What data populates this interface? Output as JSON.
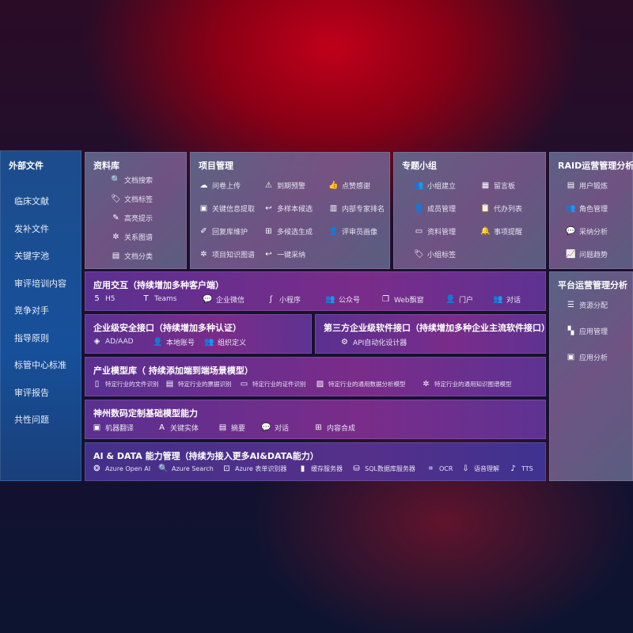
{
  "sidebar": {
    "title": "外部文件",
    "items": [
      "临床文献",
      "发补文件",
      "关键字池",
      "审评培训内容",
      "竞争对手",
      "指导原则",
      "标管中心标准",
      "审评报告",
      "共性问题"
    ]
  },
  "library": {
    "title": "资料库",
    "items": [
      {
        "icon": "doc-search-icon",
        "g": "🔍",
        "label": "文档搜索"
      },
      {
        "icon": "tag-icon",
        "g": "🏷",
        "label": "文档标签"
      },
      {
        "icon": "pen-icon",
        "g": "✎",
        "label": "高亮提示"
      },
      {
        "icon": "graph-icon",
        "g": "✲",
        "label": "关系图谱"
      },
      {
        "icon": "doc-classify-icon",
        "g": "▤",
        "label": "文档分类"
      }
    ]
  },
  "project": {
    "title": "项目管理",
    "items": [
      {
        "icon": "cloud-upload-icon",
        "g": "☁",
        "label": "问卷上传"
      },
      {
        "icon": "alarm-icon",
        "g": "⚠",
        "label": "到期预警"
      },
      {
        "icon": "thumbs-up-icon",
        "g": "👍",
        "label": "点赞感谢"
      },
      {
        "icon": "window-icon",
        "g": "▣",
        "label": "关键信息提取"
      },
      {
        "icon": "reply-icon",
        "g": "↩",
        "label": "多样本候选"
      },
      {
        "icon": "ranking-icon",
        "g": "▥",
        "label": "内部专家排名"
      },
      {
        "icon": "edit-icon",
        "g": "✐",
        "label": "回复库维护"
      },
      {
        "icon": "puzzle-icon",
        "g": "⊞",
        "label": "多候选生成"
      },
      {
        "icon": "user-icon",
        "g": "👤",
        "label": "评审员画像"
      },
      {
        "icon": "graph-icon",
        "g": "✲",
        "label": "项目知识图谱"
      },
      {
        "icon": "reply-icon",
        "g": "↩",
        "label": "一键采纳"
      }
    ]
  },
  "group": {
    "title": "专题小组",
    "items": [
      {
        "icon": "users-icon",
        "g": "👥",
        "label": "小组建立"
      },
      {
        "icon": "bbs-icon",
        "g": "▦",
        "label": "留言板"
      },
      {
        "icon": "member-icon",
        "g": "👤",
        "label": "成员管理"
      },
      {
        "icon": "clipboard-icon",
        "g": "📋",
        "label": "代办列表"
      },
      {
        "icon": "folder-icon",
        "g": "▭",
        "label": "资料管理"
      },
      {
        "icon": "bell-icon",
        "g": "🔔",
        "label": "事项提醒"
      },
      {
        "icon": "tag-icon",
        "g": "🏷",
        "label": "小组标签"
      }
    ]
  },
  "raid": {
    "title": "RAID运营管理分析",
    "items": [
      {
        "icon": "id-card-icon",
        "g": "▤",
        "label": "用户锻炼"
      },
      {
        "icon": "users-icon",
        "g": "👥",
        "label": "角色管理"
      },
      {
        "icon": "qa-icon",
        "g": "💬",
        "label": "采纳分析"
      },
      {
        "icon": "trend-icon",
        "g": "📈",
        "label": "问题趋势"
      }
    ]
  },
  "app": {
    "title": "应用交互（持续增加多种客户端）",
    "items": [
      {
        "icon": "html5-icon",
        "g": "5",
        "label": "H5"
      },
      {
        "icon": "teams-icon",
        "g": "T",
        "label": "Teams"
      },
      {
        "icon": "wecom-icon",
        "g": "💬",
        "label": "企业微信"
      },
      {
        "icon": "miniprogram-icon",
        "g": "ʃ",
        "label": "小程序"
      },
      {
        "icon": "public-account-icon",
        "g": "👥",
        "label": "公众号"
      },
      {
        "icon": "web-window-icon",
        "g": "❐",
        "label": "Web飘窗"
      },
      {
        "icon": "portal-icon",
        "g": "👤",
        "label": "门户"
      },
      {
        "icon": "chat-icon",
        "g": "👥",
        "label": "对话"
      }
    ]
  },
  "security": {
    "title": "企业级安全接口（持续增加多种认证）",
    "items": [
      {
        "icon": "aad-icon",
        "g": "◈",
        "label": "AD/AAD"
      },
      {
        "icon": "local-account-icon",
        "g": "👤",
        "label": "本地账号"
      },
      {
        "icon": "org-icon",
        "g": "👥",
        "label": "组织定义"
      }
    ]
  },
  "third": {
    "title": "第三方企业级软件接口（持续增加多种企业主流软件接口）",
    "items": [
      {
        "icon": "api-gear-icon",
        "g": "⚙",
        "label": "API自动化设计器"
      }
    ]
  },
  "industry": {
    "title": "产业模型库（ 持续添加端到端场景模型）",
    "items": [
      {
        "icon": "file-icon",
        "g": "▯",
        "label": "特定行业的文件识别"
      },
      {
        "icon": "receipt-icon",
        "g": "▤",
        "label": "特定行业的票据识别"
      },
      {
        "icon": "id-card-icon",
        "g": "▭",
        "label": "特定行业的证件识别"
      },
      {
        "icon": "chart-icon",
        "g": "▨",
        "label": "特定行业的通用数据分析模型"
      },
      {
        "icon": "graph-icon",
        "g": "✲",
        "label": "特定行业的通用知识图谱模型"
      }
    ]
  },
  "base": {
    "title": "神州数码定制基础模型能力",
    "items": [
      {
        "icon": "translate-icon",
        "g": "▣",
        "label": "机器翻译"
      },
      {
        "icon": "entity-icon",
        "g": "A",
        "label": "关键实体"
      },
      {
        "icon": "summary-icon",
        "g": "▤",
        "label": "摘要"
      },
      {
        "icon": "chat-icon",
        "g": "💬",
        "label": "对话"
      },
      {
        "icon": "compose-icon",
        "g": "⊞",
        "label": "内容合成"
      }
    ]
  },
  "aidata": {
    "title": "AI & DATA 能力管理（持续为接入更多AI&DATA能力）",
    "items": [
      {
        "icon": "openai-icon",
        "g": "❂",
        "label": "Azure Open AI"
      },
      {
        "icon": "search-doc-icon",
        "g": "🔍",
        "label": "Azure Search"
      },
      {
        "icon": "form-recognizer-icon",
        "g": "⊡",
        "label": "Azure 表单识别器"
      },
      {
        "icon": "cache-server-icon",
        "g": "▮",
        "label": "缓存服务器"
      },
      {
        "icon": "sql-db-icon",
        "g": "⛁",
        "label": "SQL数据库服务器"
      },
      {
        "icon": "ocr-icon",
        "g": "⌗",
        "label": "OCR"
      },
      {
        "icon": "speech-icon",
        "g": "⇩",
        "label": "语音理解"
      },
      {
        "icon": "tts-icon",
        "g": "♪",
        "label": "TTS"
      }
    ]
  },
  "platform": {
    "title": "平台运营管理分析",
    "items": [
      {
        "icon": "list-check-icon",
        "g": "☰",
        "label": "资源分配"
      },
      {
        "icon": "apps-icon",
        "g": "▚",
        "label": "应用管理"
      },
      {
        "icon": "analysis-icon",
        "g": "▣",
        "label": "应用分析"
      }
    ]
  }
}
